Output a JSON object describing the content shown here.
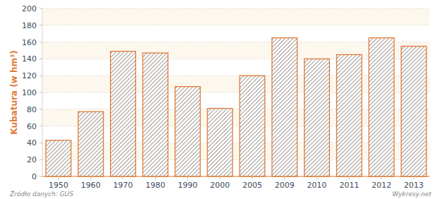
{
  "chart_data": {
    "type": "bar",
    "y_label": "Kubatura (w hm³)",
    "categories": [
      "1950",
      "1960",
      "1970",
      "1980",
      "1990",
      "2000",
      "2005",
      "2009",
      "2010",
      "2011",
      "2012",
      "2013"
    ],
    "values": [
      43,
      77,
      149,
      147,
      107,
      81,
      120,
      165,
      140,
      145,
      165,
      155
    ],
    "color": "#e07b39",
    "ylim": [
      0,
      200
    ],
    "yticks": [
      0,
      20,
      40,
      60,
      80,
      100,
      120,
      140,
      160,
      180,
      200
    ],
    "grid": true,
    "annotations": [
      "Źródło danych: GUS",
      "Wykresy.net"
    ]
  }
}
